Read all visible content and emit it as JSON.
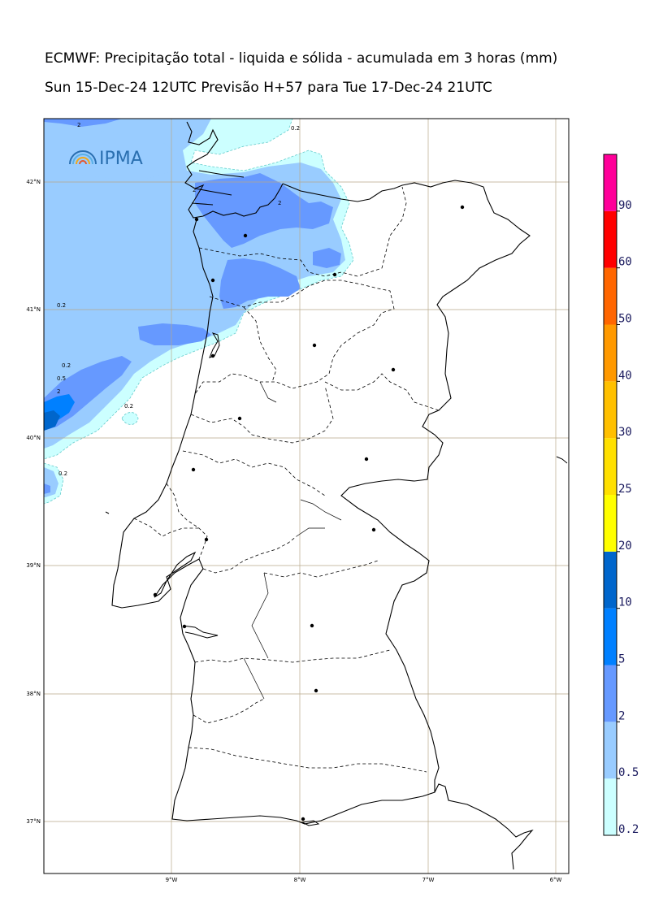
{
  "title_line1": "ECMWF: Precipitação total - liquida e sólida - acumulada em 3 horas (mm)",
  "title_line2": "Sun 15-Dec-24 12UTC Previsão H+57 para Tue 17-Dec-24 21UTC",
  "logo": {
    "text": "IPMA"
  },
  "map": {
    "lat_labels": [
      "42°N",
      "41°N",
      "40°N",
      "39°N",
      "38°N",
      "37°N"
    ],
    "lon_labels": [
      "9°W",
      "8°W",
      "7°W",
      "6°W"
    ]
  },
  "colorbar": {
    "levels": [
      "0.2",
      "0.5",
      "2",
      "5",
      "10",
      "20",
      "25",
      "30",
      "40",
      "50",
      "60",
      "90"
    ],
    "colors": [
      "#ccffff",
      "#99ccff",
      "#6699ff",
      "#0080ff",
      "#0066cc",
      "#ffff00",
      "#ffe000",
      "#ffc000",
      "#ff9900",
      "#ff6600",
      "#ff0000",
      "#ff0099"
    ]
  },
  "contour_labels": [
    "0.2",
    "0.5",
    "2"
  ]
}
